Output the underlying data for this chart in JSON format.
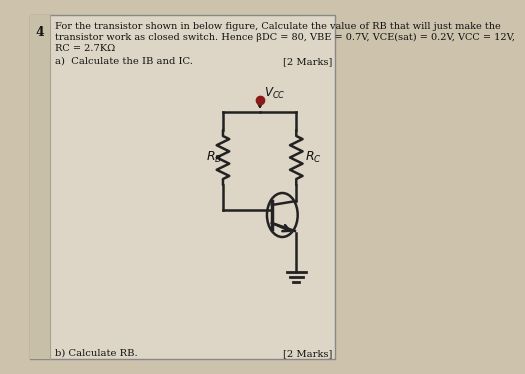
{
  "bg_color": "#cdc3ac",
  "panel_color": "#ddd6c6",
  "border_color": "#333333",
  "text_color": "#111111",
  "question_number": "4",
  "line1": "For the transistor shown in below figure, Calculate the value of RB that will just make the",
  "line2": "transistor work as closed switch. Hence βDC = 80, VBE = 0.7V, VCE(sat) = 0.2V, VCC = 12V,",
  "line3": "RC = 2.7KΩ",
  "part_a": "a)  Calculate the IB and IC.",
  "marks_a": "[2 Marks]",
  "part_b": "b) Calculate RB.",
  "marks_b": "[2 Marks]",
  "vcc_dot_color": "#8B1A1A",
  "line_color": "#222222"
}
